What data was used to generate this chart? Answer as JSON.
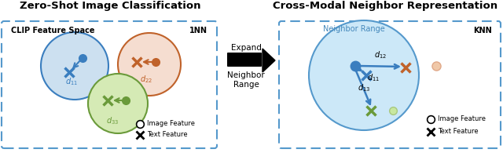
{
  "title_left": "Zero-Shot Image Classification",
  "title_right": "Cross-Modal Neighbor Representation",
  "left_box_label": "CLIP Feature Space",
  "left_box_label2": "1NN",
  "right_box_label": "KNN",
  "right_circle_label": "Neighbor Range",
  "expand_text": "Expand",
  "neighbor_text": "Neighbor\nRange",
  "legend_image": "Image Feature",
  "legend_text": "Text Feature",
  "blue_color": "#3a7ebf",
  "orange_color": "#c0622a",
  "green_color": "#6a9a3a",
  "light_blue_fill": "#cce0f0",
  "light_orange_fill": "#f5ddd0",
  "light_green_fill": "#d5eab5",
  "dashed_box_color": "#5599cc",
  "neighbor_range_fill": "#cce8f8",
  "neighbor_range_edge": "#5599cc",
  "background": "#ffffff",
  "fig_w": 6.4,
  "fig_h": 2.04,
  "dpi": 100
}
